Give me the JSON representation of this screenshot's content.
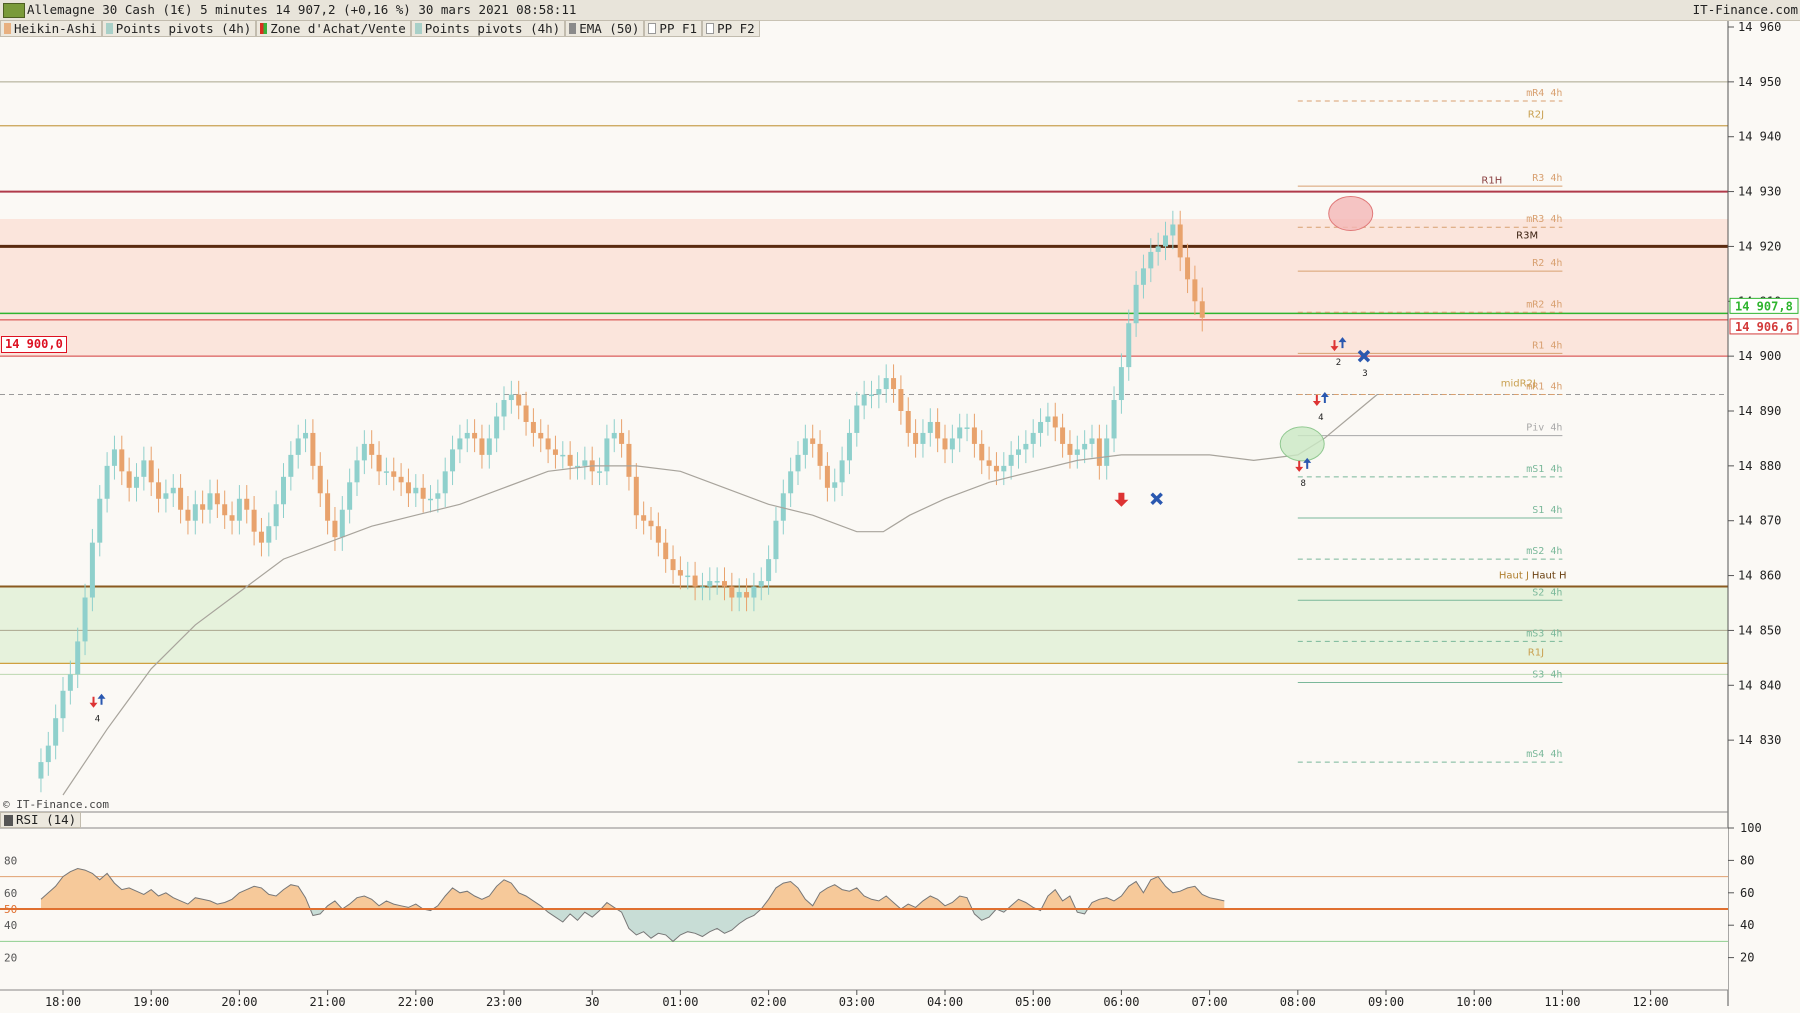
{
  "header": {
    "title": "Allemagne 30 Cash (1€) 5 minutes 14 907,2 (+0,16 %) 30 mars 2021 08:58:11",
    "source": "IT-Finance.com"
  },
  "legend": [
    {
      "label": "Heikin-Ashi",
      "color": "#e8b080"
    },
    {
      "label": "Points pivots (4h)",
      "color": "#a8d0c8"
    },
    {
      "label": "Zone d'Achat/Vente",
      "color": "#d83020"
    },
    {
      "label": "Points pivots (4h)",
      "color": "#a8d0c8"
    },
    {
      "label": "EMA (50)",
      "color": "#8a8a8a"
    },
    {
      "label": "PP F1",
      "color": "#ffffff"
    },
    {
      "label": "PP F2",
      "color": "#ffffff"
    }
  ],
  "copyright": "© IT-Finance.com",
  "price_tag": "14 900,0",
  "rsi_legend": "RSI (14)",
  "colors": {
    "up": "#8fd0cc",
    "down": "#e8a26c",
    "ema": "#a8a49c",
    "resistance_zone": "#fbe5dc",
    "support_zone": "#e6f2dc",
    "current_price": "#2fb52f",
    "bid_price": "#d33a3a"
  },
  "chart_data": {
    "type": "candlestick",
    "title": "Allemagne 30 Cash (1€) 5 minutes",
    "ylim": [
      14820,
      14960
    ],
    "yticks": [
      14830,
      14840,
      14850,
      14860,
      14870,
      14880,
      14890,
      14900,
      14910,
      14920,
      14930,
      14940,
      14950,
      14960
    ],
    "ytick_labels": [
      "14 830",
      "14 840",
      "14 850",
      "14 860",
      "14 870",
      "14 880",
      "14 890",
      "14 900",
      "14 910",
      "14 920",
      "14 930",
      "14 940",
      "14 950",
      "14 960"
    ],
    "x_ticks": [
      "18:00",
      "19:00",
      "20:00",
      "21:00",
      "22:00",
      "23:00",
      "30",
      "01:00",
      "02:00",
      "03:00",
      "04:00",
      "05:00",
      "06:00",
      "07:00",
      "08:00",
      "09:00",
      "10:00",
      "11:00",
      "12:00"
    ],
    "x_tick_hours": [
      18,
      19,
      20,
      21,
      22,
      23,
      24,
      25,
      26,
      27,
      28,
      29,
      30,
      31,
      32,
      33,
      34,
      35,
      36
    ],
    "last_prices": [
      {
        "label": "14 907,8",
        "value": 14907.8,
        "color": "#2fb52f"
      },
      {
        "label": "14 906,6",
        "value": 14906.6,
        "color": "#d33a3a"
      }
    ],
    "heikin_ashi_closes": [
      14826,
      14829,
      14834,
      14839,
      14842,
      14848,
      14856,
      14866,
      14874,
      14880,
      14883,
      14879,
      14876,
      14878,
      14881,
      14877,
      14874,
      14875,
      14876,
      14872,
      14870,
      14873,
      14872,
      14875,
      14873,
      14871,
      14870,
      14874,
      14872,
      14868,
      14866,
      14869,
      14873,
      14878,
      14882,
      14885,
      14886,
      14880,
      14875,
      14870,
      14867,
      14872,
      14877,
      14881,
      14884,
      14882,
      14879,
      14879,
      14878,
      14877,
      14875,
      14876,
      14874,
      14874,
      14875,
      14879,
      14883,
      14885,
      14886,
      14885,
      14882,
      14885,
      14889,
      14892,
      14893,
      14891,
      14888,
      14886,
      14885,
      14883,
      14882,
      14882,
      14880,
      14880,
      14881,
      14879,
      14879,
      14885,
      14886,
      14884,
      14878,
      14871,
      14870,
      14869,
      14866,
      14863,
      14861,
      14860,
      14860,
      14858,
      14858,
      14859,
      14859,
      14858,
      14856,
      14857,
      14856,
      14858,
      14859,
      14863,
      14870,
      14875,
      14879,
      14882,
      14885,
      14884,
      14880,
      14876,
      14877,
      14881,
      14886,
      14891,
      14893,
      14893,
      14894,
      14896,
      14894,
      14890,
      14886,
      14884,
      14886,
      14888,
      14885,
      14883,
      14885,
      14887,
      14887,
      14884,
      14881,
      14880,
      14879,
      14880,
      14882,
      14883,
      14884,
      14886,
      14888,
      14889,
      14887,
      14884,
      14882,
      14883,
      14884,
      14885,
      14880,
      14885,
      14892,
      14898,
      14906,
      14913,
      14916,
      14919,
      14920,
      14922,
      14924,
      14918,
      14914,
      14910,
      14907
    ],
    "heikin_ashi_opens": [
      14823,
      14826,
      14829,
      14834,
      14839,
      14842,
      14848,
      14856,
      14866,
      14874,
      14880,
      14883,
      14879,
      14876,
      14878,
      14881,
      14877,
      14874,
      14875,
      14876,
      14872,
      14870,
      14873,
      14872,
      14875,
      14873,
      14871,
      14870,
      14874,
      14872,
      14868,
      14866,
      14869,
      14873,
      14878,
      14882,
      14885,
      14886,
      14880,
      14875,
      14870,
      14867,
      14872,
      14877,
      14881,
      14884,
      14882,
      14879,
      14879,
      14878,
      14877,
      14875,
      14876,
      14874,
      14874,
      14875,
      14879,
      14883,
      14885,
      14886,
      14885,
      14882,
      14885,
      14889,
      14892,
      14893,
      14891,
      14888,
      14886,
      14885,
      14883,
      14882,
      14882,
      14880,
      14880,
      14881,
      14879,
      14879,
      14885,
      14886,
      14884,
      14878,
      14871,
      14870,
      14869,
      14866,
      14863,
      14861,
      14860,
      14860,
      14858,
      14858,
      14859,
      14859,
      14858,
      14856,
      14857,
      14856,
      14858,
      14859,
      14863,
      14870,
      14875,
      14879,
      14882,
      14885,
      14884,
      14880,
      14876,
      14877,
      14881,
      14886,
      14891,
      14893,
      14893,
      14894,
      14896,
      14894,
      14890,
      14886,
      14884,
      14886,
      14888,
      14885,
      14883,
      14885,
      14887,
      14887,
      14884,
      14881,
      14880,
      14879,
      14880,
      14882,
      14883,
      14884,
      14886,
      14888,
      14889,
      14887,
      14884,
      14882,
      14883,
      14884,
      14885,
      14880,
      14885,
      14892,
      14898,
      14906,
      14913,
      14916,
      14919,
      14920,
      14922,
      14924,
      14918,
      14914,
      14910
    ],
    "ema50": [
      {
        "t": 18.0,
        "v": 14820
      },
      {
        "t": 18.5,
        "v": 14832
      },
      {
        "t": 19.0,
        "v": 14843
      },
      {
        "t": 19.5,
        "v": 14851
      },
      {
        "t": 20.0,
        "v": 14857
      },
      {
        "t": 20.5,
        "v": 14863
      },
      {
        "t": 21.0,
        "v": 14866
      },
      {
        "t": 21.5,
        "v": 14869
      },
      {
        "t": 22.0,
        "v": 14871
      },
      {
        "t": 22.5,
        "v": 14873
      },
      {
        "t": 23.0,
        "v": 14876
      },
      {
        "t": 23.5,
        "v": 14879
      },
      {
        "t": 24.0,
        "v": 14880
      },
      {
        "t": 24.5,
        "v": 14880
      },
      {
        "t": 25.0,
        "v": 14879
      },
      {
        "t": 25.5,
        "v": 14876
      },
      {
        "t": 26.0,
        "v": 14873
      },
      {
        "t": 26.5,
        "v": 14871
      },
      {
        "t": 27.0,
        "v": 14868
      },
      {
        "t": 27.3,
        "v": 14868
      },
      {
        "t": 27.6,
        "v": 14871
      },
      {
        "t": 28.0,
        "v": 14874
      },
      {
        "t": 28.5,
        "v": 14877
      },
      {
        "t": 29.0,
        "v": 14879
      },
      {
        "t": 29.5,
        "v": 14881
      },
      {
        "t": 30.0,
        "v": 14882
      },
      {
        "t": 30.5,
        "v": 14882
      },
      {
        "t": 31.0,
        "v": 14882
      },
      {
        "t": 31.5,
        "v": 14881
      },
      {
        "t": 32.0,
        "v": 14882
      },
      {
        "t": 32.3,
        "v": 14885
      },
      {
        "t": 32.6,
        "v": 14889
      },
      {
        "t": 32.9,
        "v": 14893
      }
    ],
    "zones": [
      {
        "name": "resistance",
        "from": 14900,
        "to": 14925,
        "color": "#fbe5dc"
      },
      {
        "name": "support",
        "from": 14844,
        "to": 14858,
        "color": "#e6f2dc"
      }
    ],
    "full_levels": [
      {
        "value": 14950,
        "color": "#aaa68e",
        "width": 1
      },
      {
        "value": 14942,
        "color": "#c9a050",
        "width": 1.2
      },
      {
        "value": 14930,
        "color": "#b03a4a",
        "width": 2
      },
      {
        "value": 14920,
        "color": "#5a2a10",
        "width": 3
      },
      {
        "value": 14907.8,
        "color": "#2fb52f",
        "width": 1.5
      },
      {
        "value": 14906.6,
        "color": "#d33a3a",
        "width": 1
      },
      {
        "value": 14900,
        "color": "#d33a3a",
        "width": 1
      },
      {
        "value": 14893,
        "color": "#9a9a9a",
        "width": 1,
        "dash": true
      },
      {
        "value": 14858,
        "color": "#8a5a20",
        "width": 2
      },
      {
        "value": 14850,
        "color": "#aaa68e",
        "width": 1
      },
      {
        "value": 14844,
        "color": "#d0a040",
        "width": 1.2
      },
      {
        "value": 14842,
        "color": "#bcd8b0",
        "width": 1
      }
    ],
    "pivots_4h": [
      {
        "label": "mR4 4h",
        "value": 14946.5,
        "color": "#d8a070",
        "dash": true
      },
      {
        "label": "R3 4h",
        "value": 14931,
        "color": "#d8a070"
      },
      {
        "label": "mR3 4h",
        "value": 14923.5,
        "color": "#d8a070",
        "dash": true
      },
      {
        "label": "R2 4h",
        "value": 14915.5,
        "color": "#d8a070"
      },
      {
        "label": "mR2 4h",
        "value": 14908,
        "color": "#d8a070",
        "dash": true
      },
      {
        "label": "R1 4h",
        "value": 14900.5,
        "color": "#d8a070"
      },
      {
        "label": "mR1 4h",
        "value": 14893,
        "color": "#d8a070",
        "dash": true
      },
      {
        "label": "Piv 4h",
        "value": 14885.5,
        "color": "#a8a8a8"
      },
      {
        "label": "mS1 4h",
        "value": 14878,
        "color": "#7ab89a",
        "dash": true
      },
      {
        "label": "S1 4h",
        "value": 14870.5,
        "color": "#7ab89a"
      },
      {
        "label": "mS2 4h",
        "value": 14863,
        "color": "#7ab89a",
        "dash": true
      },
      {
        "label": "S2 4h",
        "value": 14855.5,
        "color": "#7ab89a"
      },
      {
        "label": "mS3 4h",
        "value": 14848,
        "color": "#7ab89a",
        "dash": true
      },
      {
        "label": "S3 4h",
        "value": 14840.5,
        "color": "#7ab89a"
      },
      {
        "label": "mS4 4h",
        "value": 14826,
        "color": "#7ab89a",
        "dash": true
      }
    ],
    "level_labels": [
      {
        "label": "R2J",
        "value": 14942,
        "t": 34.7,
        "color": "#c9a050"
      },
      {
        "label": "R1H",
        "value": 14930,
        "t": 34.2,
        "color": "#8a4040"
      },
      {
        "label": "R3M",
        "value": 14920,
        "t": 34.6,
        "color": "#3a2010"
      },
      {
        "label": "midR2J",
        "value": 14893,
        "t": 34.5,
        "color": "#c9a050"
      },
      {
        "label": "Haut J",
        "value": 14858,
        "t": 34.45,
        "color": "#b08030"
      },
      {
        "label": "Haut H",
        "value": 14858,
        "t": 34.85,
        "color": "#6a4010"
      },
      {
        "label": "R1J",
        "value": 14844,
        "t": 34.7,
        "color": "#c9a050"
      }
    ],
    "signals": [
      {
        "type": "pair",
        "t": 18.38,
        "v": 14837,
        "count": "4"
      },
      {
        "type": "down",
        "t": 30.0,
        "v": 14874
      },
      {
        "type": "cross",
        "t": 30.4,
        "v": 14874
      },
      {
        "type": "pair",
        "t": 32.05,
        "v": 14880,
        "count": "8"
      },
      {
        "type": "pair",
        "t": 32.25,
        "v": 14892,
        "count": "4"
      },
      {
        "type": "pair",
        "t": 32.45,
        "v": 14902,
        "count": "2"
      },
      {
        "type": "cross",
        "t": 32.75,
        "v": 14900,
        "count": "3"
      }
    ],
    "circles": [
      {
        "t": 32.6,
        "v": 14926,
        "color": "#f4b6b6",
        "stroke": "#e07878"
      },
      {
        "t": 32.05,
        "v": 14884,
        "color": "#cbe9c4",
        "stroke": "#90c890"
      }
    ],
    "rsi": {
      "label": "RSI (14)",
      "yticks_right": [
        20,
        40,
        60,
        80,
        100
      ],
      "yticks_left": [
        20,
        40,
        50,
        60,
        80
      ],
      "levels": [
        30,
        50,
        70
      ],
      "values": [
        56,
        60,
        64,
        70,
        73,
        75,
        74,
        72,
        68,
        72,
        66,
        62,
        63,
        61,
        59,
        62,
        58,
        60,
        57,
        55,
        53,
        57,
        56,
        55,
        53,
        54,
        56,
        60,
        62,
        64,
        63,
        59,
        58,
        62,
        65,
        64,
        57,
        46,
        47,
        52,
        55,
        50,
        53,
        57,
        58,
        56,
        52,
        55,
        53,
        52,
        51,
        53,
        50,
        49,
        52,
        58,
        63,
        60,
        61,
        58,
        56,
        58,
        64,
        68,
        66,
        60,
        58,
        55,
        52,
        48,
        45,
        42,
        47,
        43,
        48,
        45,
        49,
        54,
        51,
        48,
        38,
        34,
        36,
        32,
        35,
        34,
        30,
        34,
        36,
        35,
        33,
        36,
        38,
        35,
        37,
        41,
        44,
        46,
        50,
        56,
        63,
        66,
        67,
        63,
        56,
        52,
        60,
        63,
        65,
        62,
        61,
        63,
        58,
        56,
        55,
        58,
        54,
        50,
        53,
        51,
        55,
        58,
        56,
        52,
        54,
        58,
        57,
        47,
        43,
        45,
        50,
        48,
        52,
        56,
        54,
        51,
        49,
        58,
        62,
        55,
        58,
        48,
        47,
        54,
        56,
        57,
        55,
        58,
        64,
        67,
        60,
        68,
        70,
        64,
        60,
        61,
        63,
        64,
        59,
        57,
        56,
        55
      ]
    },
    "rsi_range_start": 18.0,
    "data_start": 17.75,
    "step_hours": 0.08333333
  }
}
